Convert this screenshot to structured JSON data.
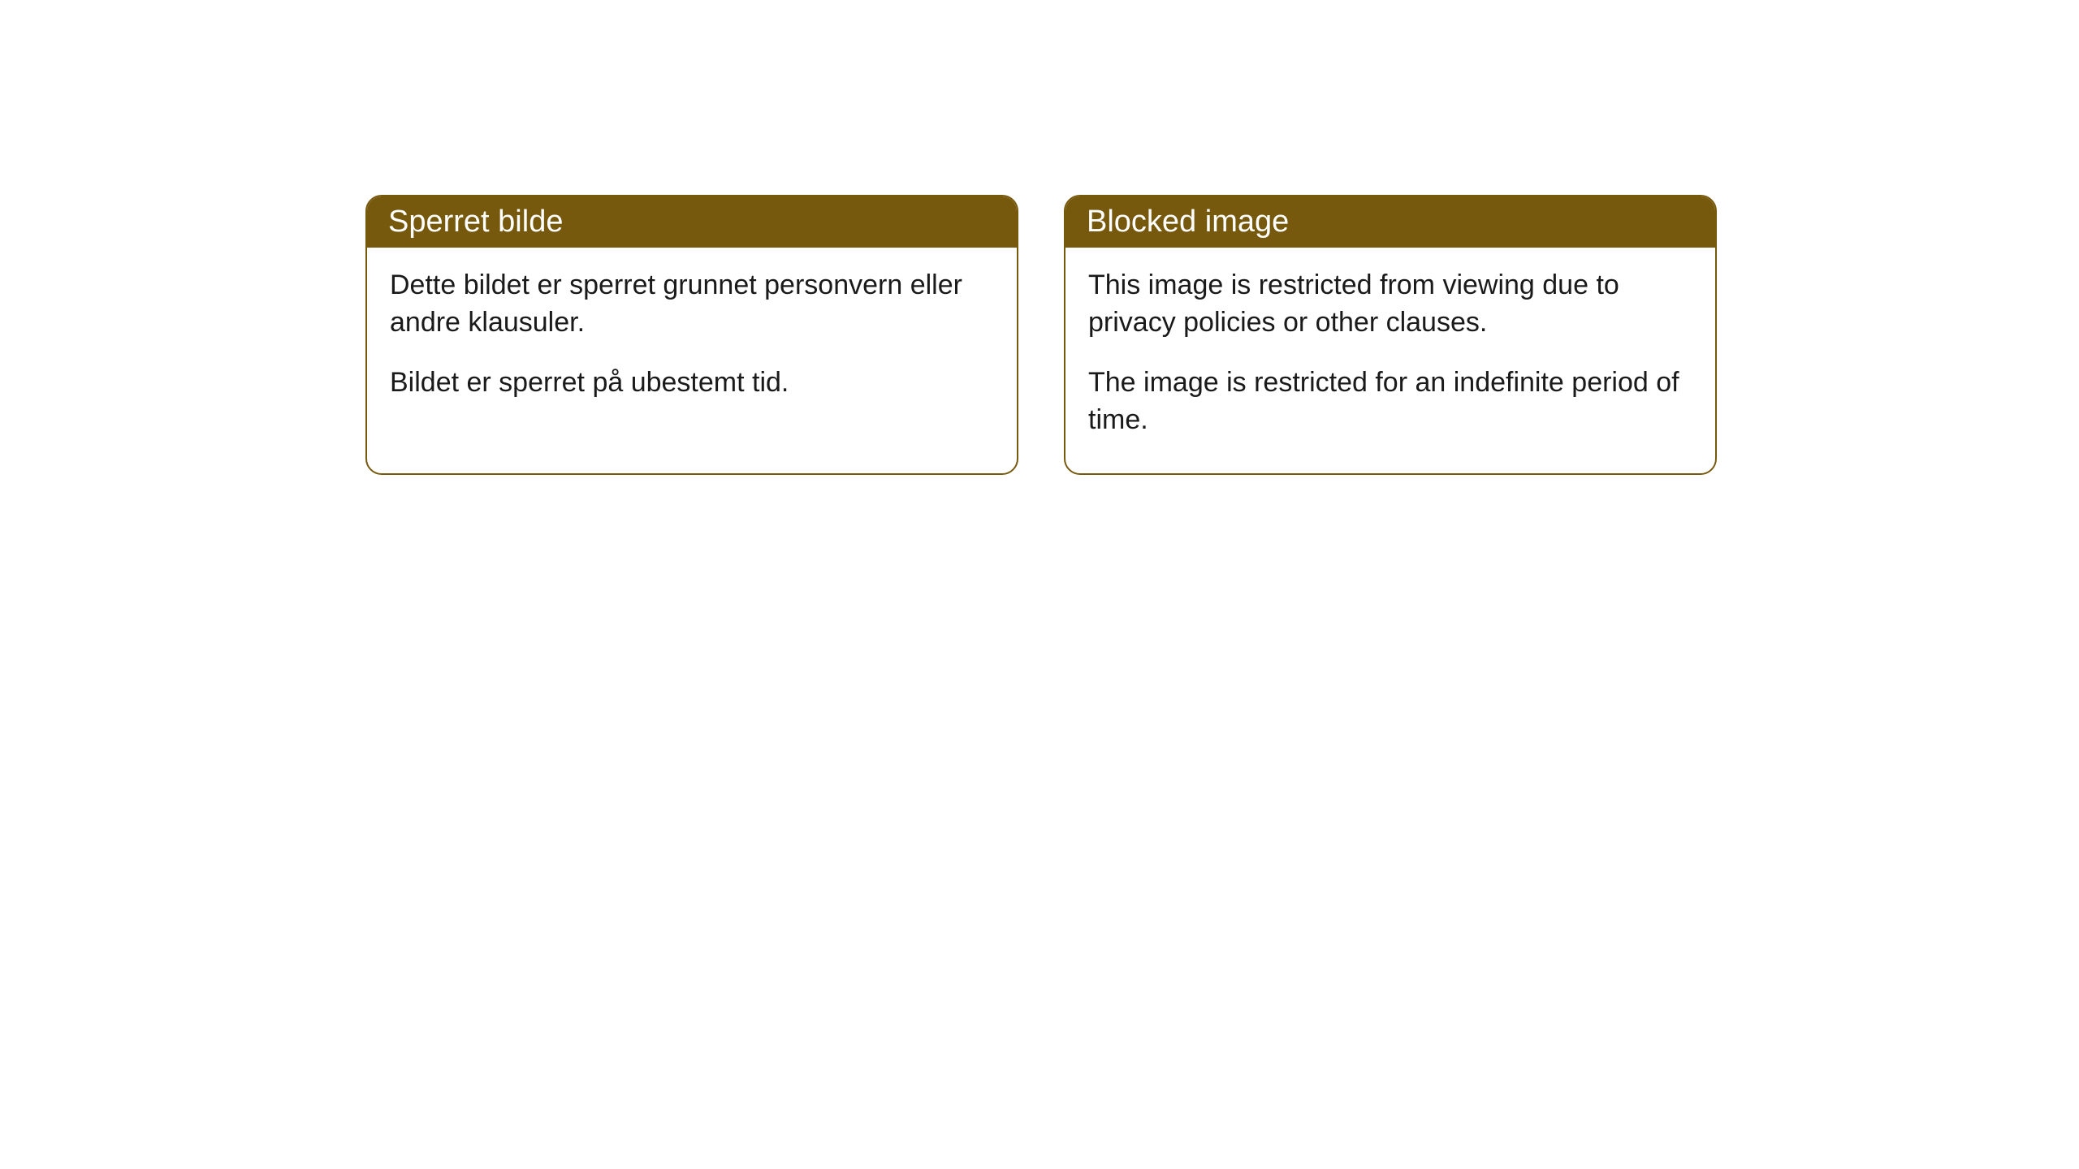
{
  "cards": [
    {
      "title": "Sperret bilde",
      "paragraph1": "Dette bildet er sperret grunnet personvern eller andre klausuler.",
      "paragraph2": "Bildet er sperret på ubestemt tid."
    },
    {
      "title": "Blocked image",
      "paragraph1": "This image is restricted from viewing due to privacy policies or other clauses.",
      "paragraph2": "The image is restricted for an indefinite period of time."
    }
  ],
  "styling": {
    "header_bg_color": "#77590e",
    "header_text_color": "#ffffff",
    "border_color": "#77590e",
    "border_radius": "20px",
    "body_bg_color": "#ffffff",
    "body_text_color": "#1a1a1a",
    "title_fontsize": 38,
    "body_fontsize": 34
  }
}
